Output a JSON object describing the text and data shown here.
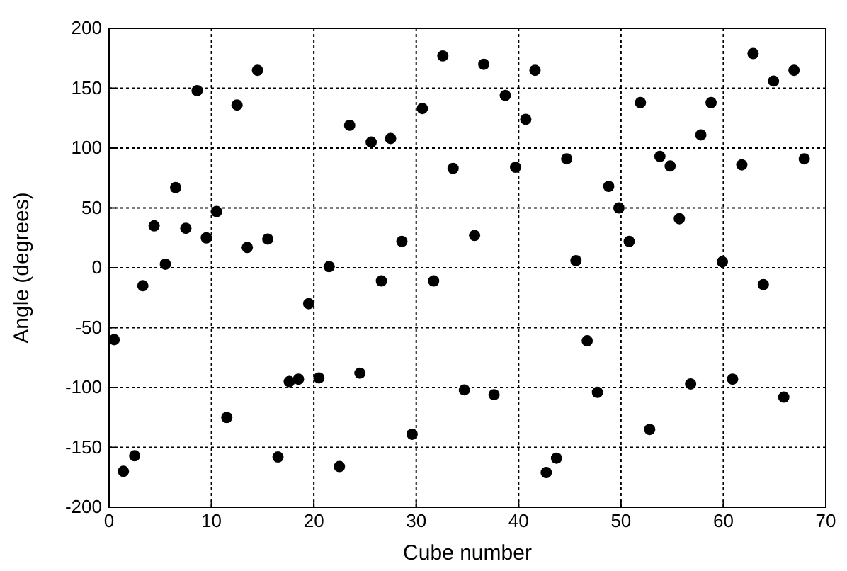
{
  "chart_data": {
    "type": "scatter",
    "xlabel": "Cube number",
    "ylabel": "Angle (degrees)",
    "xlim": [
      0,
      70
    ],
    "ylim": [
      -200,
      200
    ],
    "xticks": [
      0,
      10,
      20,
      30,
      40,
      50,
      60,
      70
    ],
    "yticks": [
      -200,
      -150,
      -100,
      -50,
      0,
      50,
      100,
      150,
      200
    ],
    "grid": true,
    "marker": "circle",
    "series": [
      {
        "color": "#000000",
        "x": [
          0.5,
          1.4,
          2.5,
          3.3,
          4.4,
          5.5,
          6.5,
          7.5,
          8.6,
          9.5,
          10.5,
          11.5,
          12.5,
          13.5,
          14.5,
          15.5,
          16.5,
          17.6,
          18.5,
          19.5,
          20.5,
          21.5,
          22.5,
          23.5,
          24.5,
          25.6,
          26.6,
          27.5,
          28.6,
          29.6,
          30.6,
          31.7,
          32.6,
          33.6,
          34.7,
          35.7,
          36.6,
          37.6,
          38.7,
          39.7,
          40.7,
          41.6,
          42.7,
          43.7,
          44.7,
          45.6,
          46.7,
          47.7,
          48.8,
          49.8,
          50.8,
          51.9,
          52.8,
          53.8,
          54.8,
          55.7,
          56.8,
          57.8,
          58.8,
          59.9,
          60.9,
          61.8,
          62.9,
          63.9,
          64.9,
          65.9,
          66.9,
          67.9
        ],
        "values": [
          -60,
          -170,
          -157,
          -15,
          35,
          3,
          67,
          33,
          148,
          25,
          47,
          -125,
          136,
          17,
          165,
          24,
          -158,
          -95,
          -93,
          -30,
          -92,
          1,
          -166,
          119,
          -88,
          105,
          -11,
          108,
          22,
          -139,
          133,
          -11,
          177,
          83,
          -102,
          27,
          170,
          -106,
          144,
          84,
          124,
          165,
          -171,
          -159,
          91,
          6,
          -61,
          -104,
          68,
          50,
          22,
          138,
          -135,
          93,
          85,
          41,
          -97,
          111,
          138,
          5,
          -93,
          86,
          179,
          -14,
          156,
          -108,
          165,
          91
        ]
      }
    ]
  }
}
